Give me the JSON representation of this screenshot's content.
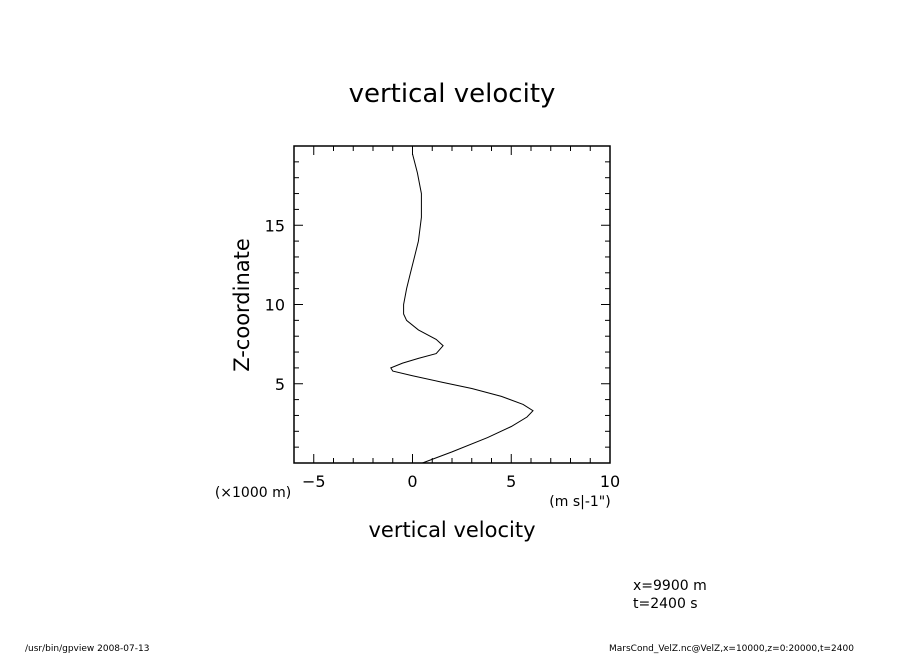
{
  "chart_data": {
    "type": "line",
    "title": "vertical velocity",
    "xlabel": "vertical velocity",
    "ylabel": "Z-coordinate",
    "x_unit": "(m s|-1\")",
    "y_unit": "(×1000 m)",
    "xlim": [
      -6,
      10
    ],
    "ylim": [
      0,
      20
    ],
    "x_ticks": [
      "-5",
      "0",
      "5",
      "10"
    ],
    "y_ticks": [
      "5",
      "10",
      "15"
    ],
    "grid": false,
    "series": [
      {
        "x": [
          0.5,
          2.0,
          3.8,
          5.0,
          5.8,
          6.1,
          5.6,
          4.5,
          3.0,
          1.5,
          0.0,
          -1.0,
          -1.1,
          -0.5,
          0.3,
          1.2,
          1.55,
          1.2,
          0.3,
          -0.3,
          -0.45,
          -0.45,
          -0.3,
          -0.1,
          0.1,
          0.3,
          0.45,
          0.45,
          0.25,
          0.0
        ],
        "y": [
          0.0,
          0.7,
          1.6,
          2.3,
          2.9,
          3.3,
          3.7,
          4.2,
          4.7,
          5.1,
          5.5,
          5.8,
          6.0,
          6.3,
          6.6,
          6.9,
          7.4,
          7.8,
          8.4,
          9.0,
          9.4,
          10.0,
          11.0,
          12.0,
          13.0,
          14.0,
          15.5,
          17.0,
          18.3,
          19.5
        ]
      }
    ]
  },
  "info": {
    "x_note": "x=9900 m",
    "t_note": "t=2400 s"
  },
  "footer": {
    "left": "/usr/bin/gpview  2008-07-13",
    "right": "MarsCond_VelZ.nc@VelZ,x=10000,z=0:20000,t=2400"
  }
}
